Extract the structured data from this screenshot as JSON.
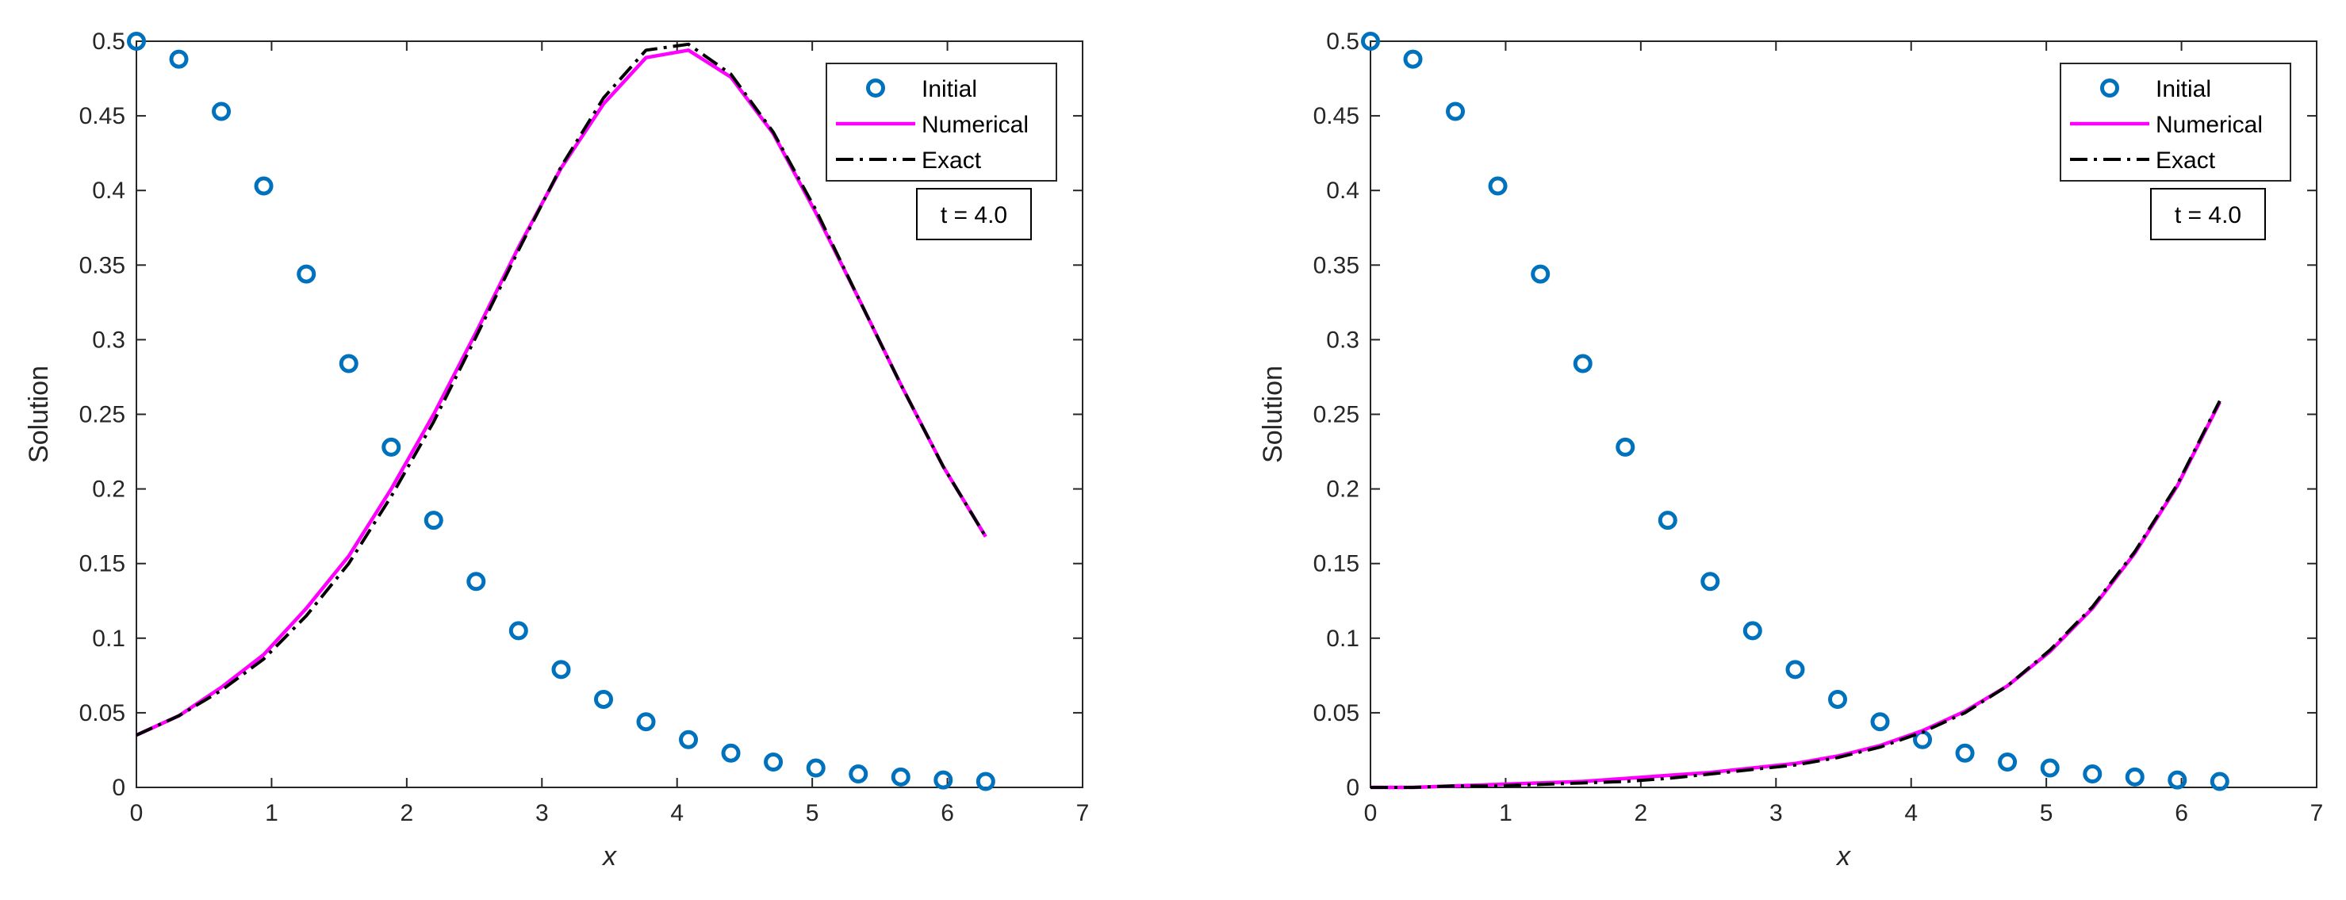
{
  "figure": {
    "background": "#ffffff"
  },
  "colors": {
    "initial": "#0072BD",
    "numerical": "#FF00FF",
    "exact": "#000000",
    "axes": "#262626"
  },
  "chart_data": [
    {
      "type": "line",
      "xlabel": "x",
      "ylabel": "Solution",
      "xlim": [
        0,
        7
      ],
      "ylim": [
        0,
        0.5
      ],
      "xticks": [
        0,
        1,
        2,
        3,
        4,
        5,
        6,
        7
      ],
      "yticks": [
        0,
        0.05,
        0.1,
        0.15,
        0.2,
        0.25,
        0.3,
        0.35,
        0.4,
        0.45,
        0.5
      ],
      "xtick_labels": [
        "0",
        "1",
        "2",
        "3",
        "4",
        "5",
        "6",
        "7"
      ],
      "ytick_labels": [
        "0",
        "0.05",
        "0.1",
        "0.15",
        "0.2",
        "0.25",
        "0.3",
        "0.35",
        "0.4",
        "0.45",
        "0.5"
      ],
      "grid": false,
      "legend": "top-right",
      "annotation": "t = 4.0",
      "series": [
        {
          "name": "Initial",
          "style": "markers-circle",
          "x": [
            0,
            0.314,
            0.628,
            0.942,
            1.257,
            1.571,
            1.885,
            2.199,
            2.513,
            2.827,
            3.142,
            3.456,
            3.77,
            4.084,
            4.398,
            4.712,
            5.027,
            5.341,
            5.655,
            5.969,
            6.283
          ],
          "y": [
            0.5,
            0.488,
            0.453,
            0.403,
            0.344,
            0.284,
            0.228,
            0.179,
            0.138,
            0.105,
            0.079,
            0.059,
            0.044,
            0.032,
            0.023,
            0.017,
            0.013,
            0.009,
            0.007,
            0.005,
            0.004
          ]
        },
        {
          "name": "Numerical",
          "style": "solid",
          "x": [
            0,
            0.314,
            0.628,
            0.942,
            1.257,
            1.571,
            1.885,
            2.199,
            2.513,
            2.827,
            3.142,
            3.456,
            3.77,
            4.084,
            4.398,
            4.712,
            5.027,
            5.341,
            5.655,
            5.969,
            6.283
          ],
          "y": [
            0.035,
            0.048,
            0.067,
            0.089,
            0.12,
            0.155,
            0.2,
            0.25,
            0.305,
            0.362,
            0.415,
            0.458,
            0.489,
            0.494,
            0.476,
            0.438,
            0.385,
            0.328,
            0.27,
            0.215,
            0.168
          ]
        },
        {
          "name": "Exact",
          "style": "dash-dot",
          "x": [
            0,
            0.314,
            0.628,
            0.942,
            1.257,
            1.571,
            1.885,
            2.199,
            2.513,
            2.827,
            3.142,
            3.456,
            3.77,
            4.084,
            4.398,
            4.712,
            5.027,
            5.341,
            5.655,
            5.969,
            6.283
          ],
          "y": [
            0.035,
            0.048,
            0.065,
            0.086,
            0.115,
            0.15,
            0.195,
            0.245,
            0.302,
            0.36,
            0.416,
            0.462,
            0.494,
            0.498,
            0.478,
            0.439,
            0.387,
            0.328,
            0.27,
            0.215,
            0.168
          ]
        }
      ]
    },
    {
      "type": "line",
      "xlabel": "x",
      "ylabel": "Solution",
      "xlim": [
        0,
        7
      ],
      "ylim": [
        0,
        0.5
      ],
      "xticks": [
        0,
        1,
        2,
        3,
        4,
        5,
        6,
        7
      ],
      "yticks": [
        0,
        0.05,
        0.1,
        0.15,
        0.2,
        0.25,
        0.3,
        0.35,
        0.4,
        0.45,
        0.5
      ],
      "xtick_labels": [
        "0",
        "1",
        "2",
        "3",
        "4",
        "5",
        "6",
        "7"
      ],
      "ytick_labels": [
        "0",
        "0.05",
        "0.1",
        "0.15",
        "0.2",
        "0.25",
        "0.3",
        "0.35",
        "0.4",
        "0.45",
        "0.5"
      ],
      "grid": false,
      "legend": "top-right",
      "annotation": "t = 4.0",
      "series": [
        {
          "name": "Initial",
          "style": "markers-circle",
          "x": [
            0,
            0.314,
            0.628,
            0.942,
            1.257,
            1.571,
            1.885,
            2.199,
            2.513,
            2.827,
            3.142,
            3.456,
            3.77,
            4.084,
            4.398,
            4.712,
            5.027,
            5.341,
            5.655,
            5.969,
            6.283
          ],
          "y": [
            0.5,
            0.488,
            0.453,
            0.403,
            0.344,
            0.284,
            0.228,
            0.179,
            0.138,
            0.105,
            0.079,
            0.059,
            0.044,
            0.032,
            0.023,
            0.017,
            0.013,
            0.009,
            0.007,
            0.005,
            0.004
          ]
        },
        {
          "name": "Numerical",
          "style": "solid",
          "x": [
            0,
            0.314,
            0.628,
            0.942,
            1.257,
            1.571,
            1.885,
            2.199,
            2.513,
            2.827,
            3.142,
            3.456,
            3.77,
            4.084,
            4.398,
            4.712,
            5.027,
            5.341,
            5.655,
            5.969,
            6.283
          ],
          "y": [
            0,
            0,
            0.001,
            0.002,
            0.003,
            0.004,
            0.006,
            0.008,
            0.01,
            0.013,
            0.016,
            0.021,
            0.028,
            0.038,
            0.051,
            0.068,
            0.091,
            0.12,
            0.157,
            0.202,
            0.258
          ]
        },
        {
          "name": "Exact",
          "style": "dash-dot",
          "x": [
            0,
            0.314,
            0.628,
            0.942,
            1.257,
            1.571,
            1.885,
            2.199,
            2.513,
            2.827,
            3.142,
            3.456,
            3.77,
            4.084,
            4.398,
            4.712,
            5.027,
            5.341,
            5.655,
            5.969,
            6.283
          ],
          "y": [
            0,
            0,
            0.001,
            0.001,
            0.002,
            0.003,
            0.004,
            0.006,
            0.009,
            0.012,
            0.015,
            0.02,
            0.027,
            0.037,
            0.05,
            0.068,
            0.092,
            0.121,
            0.158,
            0.203,
            0.259
          ]
        }
      ]
    }
  ]
}
